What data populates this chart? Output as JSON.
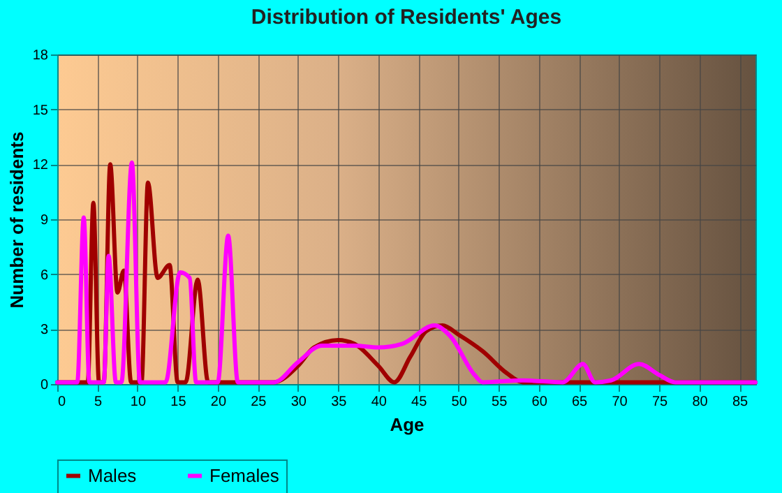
{
  "chart_data": {
    "type": "line",
    "title": "Distribution of Residents' Ages",
    "xlabel": "Age",
    "ylabel": "Number of residents",
    "xlim": [
      0,
      87
    ],
    "xticks": [
      0,
      5,
      10,
      15,
      20,
      25,
      30,
      35,
      40,
      45,
      50,
      55,
      60,
      65,
      70,
      75,
      80,
      85
    ],
    "ylim": [
      0,
      18
    ],
    "yticks": [
      0,
      3,
      6,
      9,
      12,
      15,
      18
    ],
    "grid": true,
    "legend": "bottom",
    "series": [
      {
        "name": "Males",
        "color": "#a00000",
        "x": [
          0,
          3,
          3.8,
          4.5,
          5.2,
          5.8,
          6.6,
          7.5,
          8.3,
          9.2,
          10.5,
          11.3,
          12.5,
          14,
          15,
          16,
          17.5,
          18.8,
          20,
          25,
          27,
          30,
          32,
          35,
          37,
          40,
          42,
          44,
          46,
          48,
          50,
          53,
          56,
          58,
          60,
          87
        ],
        "values": [
          0.1,
          0.1,
          0.1,
          9.9,
          0.1,
          0.1,
          12,
          5,
          6.2,
          0.1,
          0.1,
          11,
          5.8,
          6.5,
          0.1,
          0.1,
          5.7,
          0.1,
          0.1,
          0.1,
          0.1,
          1,
          2,
          2.4,
          2.2,
          1,
          0.1,
          1.5,
          2.9,
          3.2,
          2.7,
          1.8,
          0.6,
          0.1,
          0.1,
          0.1
        ]
      },
      {
        "name": "Females",
        "color": "#ff00ff",
        "x": [
          0,
          2.5,
          3.3,
          4,
          5.8,
          6.4,
          7.3,
          8,
          9.3,
          10.3,
          12,
          13.5,
          15.3,
          16.5,
          17.3,
          20,
          21.3,
          22.5,
          25,
          27,
          30,
          33,
          37,
          40,
          43,
          47,
          49,
          52,
          53,
          58,
          63,
          65.5,
          67,
          69,
          72.5,
          75,
          77,
          87
        ],
        "values": [
          0.1,
          0.1,
          9.1,
          0.1,
          0.1,
          7,
          0.1,
          0.1,
          12.1,
          0.1,
          0.1,
          0.1,
          6.1,
          5.8,
          0.1,
          0.1,
          8.1,
          0.1,
          0.1,
          0.1,
          1.2,
          2.1,
          2.1,
          2,
          2.2,
          3.2,
          2.6,
          0.5,
          0.1,
          0.2,
          0.1,
          1.1,
          0.1,
          0.2,
          1.1,
          0.5,
          0.1,
          0.1
        ]
      }
    ]
  }
}
